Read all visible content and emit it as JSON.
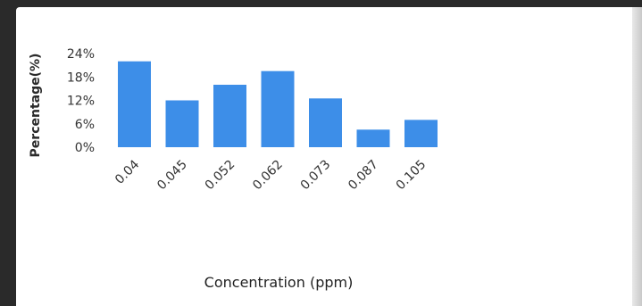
{
  "chart_data": {
    "type": "bar",
    "title": "",
    "xlabel": "Concentration (ppm)",
    "ylabel": "Percentage(%)",
    "categories": [
      "0.04",
      "0.045",
      "0.052",
      "0.062",
      "0.073",
      "0.087",
      "0.105"
    ],
    "values": [
      22.0,
      12.0,
      16.0,
      19.5,
      12.5,
      4.5,
      7.0
    ],
    "ylim": [
      0,
      24
    ],
    "yticks": [
      0,
      6,
      12,
      18,
      24
    ],
    "ytick_labels": [
      "0%",
      "6%",
      "12%",
      "18%",
      "24%"
    ],
    "grid": false,
    "legend": "none",
    "bar_color": "#3d8ee8"
  }
}
